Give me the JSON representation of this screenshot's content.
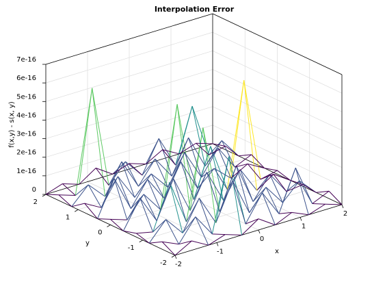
{
  "chart_data": {
    "type": "mesh3d",
    "title": "Interpolation Error",
    "xlabel": "x",
    "ylabel": "y",
    "zlabel": "f(x,y) - s(x, y)",
    "xlim": [
      -2,
      2
    ],
    "ylim": [
      -2,
      2
    ],
    "zlim": [
      0,
      7e-16
    ],
    "xticks": [
      "-2",
      "-1",
      "0",
      "1",
      "2"
    ],
    "yticks": [
      "-2",
      "-1",
      "0",
      "1",
      "2"
    ],
    "zticks": [
      "0",
      "1e-16",
      "2e-16",
      "3e-16",
      "4e-16",
      "5e-16",
      "6e-16",
      "7e-16"
    ],
    "ztick_values": [
      0,
      1e-16,
      2e-16,
      3e-16,
      4e-16,
      5e-16,
      6e-16,
      7e-16
    ],
    "grid": true,
    "colormap": [
      "#440154",
      "#3b528b",
      "#21908d",
      "#5dc963",
      "#fde725"
    ],
    "x": [
      -2,
      -1.6,
      -1.2,
      -0.8,
      -0.4,
      0,
      0.4,
      0.8,
      1.2,
      1.6,
      2
    ],
    "y": [
      -2,
      -1.6,
      -1.2,
      -0.8,
      -0.4,
      0,
      0.4,
      0.8,
      1.2,
      1.6,
      2
    ],
    "z": [
      [
        0,
        5e-17,
        0,
        3e-17,
        0,
        6e-17,
        0,
        4e-17,
        0,
        3e-17,
        0
      ],
      [
        4e-17,
        0,
        1.2e-16,
        0,
        3.9e-16,
        0,
        1.4e-16,
        0,
        2.2e-16,
        0,
        4e-17
      ],
      [
        0,
        1e-16,
        0,
        1.6e-16,
        0,
        2e-16,
        0,
        1.1e-16,
        0,
        9e-17,
        0
      ],
      [
        2e-17,
        0,
        2.4e-16,
        0,
        4.8e-16,
        0,
        2.2e-16,
        0,
        1.2e-16,
        0,
        1e-17
      ],
      [
        0,
        1.5e-16,
        0,
        2e-16,
        0,
        1.8e-16,
        0,
        1.4e-16,
        0,
        6e-17,
        0
      ],
      [
        3e-17,
        0,
        1.1e-16,
        0,
        5.4e-16,
        0,
        2.6e-16,
        0,
        5.6e-16,
        0,
        2e-17
      ],
      [
        0,
        1.9e-16,
        0,
        1.3e-16,
        0,
        1.7e-16,
        0,
        8e-17,
        0,
        5e-17,
        0
      ],
      [
        5e-17,
        0,
        1.4e-16,
        0,
        1e-16,
        0,
        1.6e-16,
        0,
        1.3e-16,
        0,
        4e-17
      ],
      [
        0,
        9e-17,
        0,
        1.6e-16,
        0,
        1.2e-16,
        0,
        1.8e-16,
        0,
        1.1e-16,
        0
      ],
      [
        3e-17,
        0,
        5.5e-16,
        0,
        1e-16,
        0,
        1.7e-16,
        0,
        2.9e-16,
        0,
        2e-17
      ],
      [
        0,
        3e-17,
        0,
        6e-17,
        0,
        3e-17,
        0,
        5e-17,
        0,
        3e-17,
        0
      ]
    ]
  }
}
